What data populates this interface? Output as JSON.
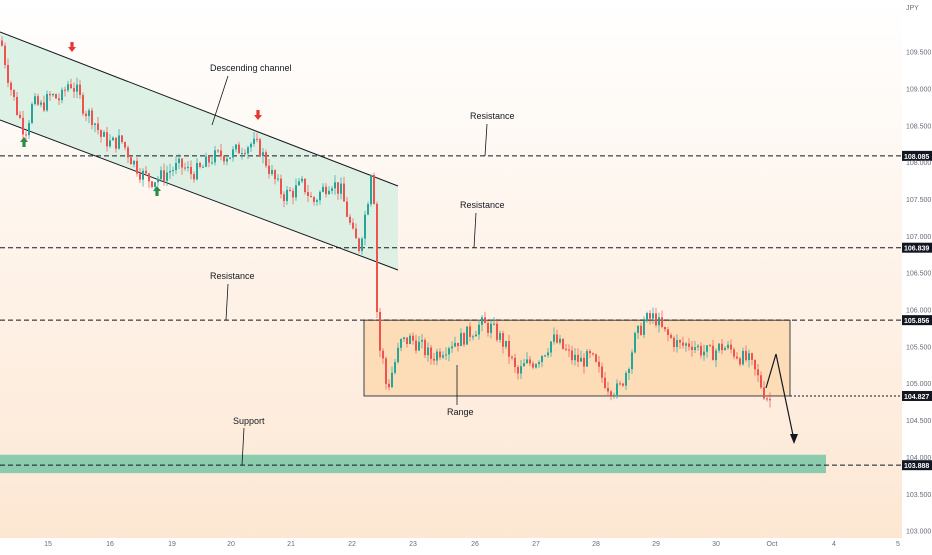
{
  "chart_data": {
    "type": "candlestick",
    "currency_label": "JPY",
    "colors": {
      "up": "#26a69a",
      "down": "#ef5350",
      "channel_fill": "#d8efe2",
      "range_fill": "#fcd9b0",
      "support_fill": "#7fc9a9",
      "bg_top": "#ffffff",
      "bg_bottom": "#fde7d3",
      "arrow_up": "#2e8b4c",
      "arrow_down": "#e53935"
    },
    "y_axis": {
      "range": [
        102.9,
        110.2
      ],
      "ticks": [
        "109.500",
        "109.000",
        "108.500",
        "108.000",
        "107.500",
        "107.000",
        "106.500",
        "106.000",
        "105.500",
        "105.000",
        "104.500",
        "104.000",
        "103.500",
        "103.000"
      ]
    },
    "x_axis": {
      "ticks": [
        "15",
        "16",
        "19",
        "20",
        "21",
        "22",
        "23",
        "26",
        "27",
        "28",
        "29",
        "30",
        "Oct",
        "4",
        "5"
      ]
    },
    "levels": [
      {
        "price": 108.085,
        "label": "108.085",
        "annotation": "Resistance"
      },
      {
        "price": 106.839,
        "label": "106.839",
        "annotation": "Resistance"
      },
      {
        "price": 105.856,
        "label": "105.856",
        "annotation": "Resistance"
      },
      {
        "price": 104.827,
        "label": "104.827",
        "annotation": "Range"
      },
      {
        "price": 103.888,
        "label": "103.888",
        "annotation": "Support"
      }
    ],
    "annotations": {
      "channel": "Descending channel"
    },
    "price_path": [
      [
        0,
        109.65
      ],
      [
        8,
        109.1
      ],
      [
        16,
        108.7
      ],
      [
        24,
        108.4
      ],
      [
        32,
        108.8
      ],
      [
        40,
        108.75
      ],
      [
        50,
        108.9
      ],
      [
        60,
        108.85
      ],
      [
        68,
        109.1
      ],
      [
        76,
        108.95
      ],
      [
        84,
        108.7
      ],
      [
        92,
        108.6
      ],
      [
        100,
        108.35
      ],
      [
        110,
        108.25
      ],
      [
        120,
        108.3
      ],
      [
        130,
        108.05
      ],
      [
        140,
        107.85
      ],
      [
        150,
        107.75
      ],
      [
        160,
        107.8
      ],
      [
        170,
        107.9
      ],
      [
        180,
        107.95
      ],
      [
        190,
        107.85
      ],
      [
        200,
        107.9
      ],
      [
        210,
        108.05
      ],
      [
        220,
        108.1
      ],
      [
        230,
        108.1
      ],
      [
        240,
        108.2
      ],
      [
        250,
        108.25
      ],
      [
        258,
        108.2
      ],
      [
        265,
        108.0
      ],
      [
        272,
        107.8
      ],
      [
        282,
        107.55
      ],
      [
        292,
        107.6
      ],
      [
        302,
        107.7
      ],
      [
        312,
        107.45
      ],
      [
        320,
        107.6
      ],
      [
        330,
        107.75
      ],
      [
        340,
        107.6
      ],
      [
        346,
        107.3
      ],
      [
        352,
        107.0
      ],
      [
        358,
        106.85
      ],
      [
        363,
        107.2
      ],
      [
        368,
        107.6
      ],
      [
        372,
        108.05
      ],
      [
        375,
        106.2
      ],
      [
        378,
        105.5
      ],
      [
        382,
        105.3
      ],
      [
        386,
        104.9
      ],
      [
        392,
        105.2
      ],
      [
        400,
        105.55
      ],
      [
        410,
        105.6
      ],
      [
        420,
        105.5
      ],
      [
        430,
        105.35
      ],
      [
        440,
        105.45
      ],
      [
        450,
        105.55
      ],
      [
        460,
        105.6
      ],
      [
        470,
        105.7
      ],
      [
        480,
        105.8
      ],
      [
        490,
        105.75
      ],
      [
        500,
        105.6
      ],
      [
        508,
        105.4
      ],
      [
        516,
        105.1
      ],
      [
        524,
        105.25
      ],
      [
        534,
        105.3
      ],
      [
        544,
        105.45
      ],
      [
        552,
        105.6
      ],
      [
        560,
        105.5
      ],
      [
        570,
        105.35
      ],
      [
        580,
        105.3
      ],
      [
        590,
        105.35
      ],
      [
        600,
        105.1
      ],
      [
        608,
        104.95
      ],
      [
        618,
        104.9
      ],
      [
        626,
        105.2
      ],
      [
        634,
        105.6
      ],
      [
        644,
        105.85
      ],
      [
        654,
        105.9
      ],
      [
        662,
        105.7
      ],
      [
        670,
        105.6
      ],
      [
        680,
        105.5
      ],
      [
        690,
        105.55
      ],
      [
        700,
        105.45
      ],
      [
        710,
        105.4
      ],
      [
        720,
        105.5
      ],
      [
        730,
        105.45
      ],
      [
        740,
        105.35
      ],
      [
        748,
        105.3
      ],
      [
        756,
        105.1
      ],
      [
        764,
        104.85
      ],
      [
        770,
        104.75
      ]
    ]
  }
}
